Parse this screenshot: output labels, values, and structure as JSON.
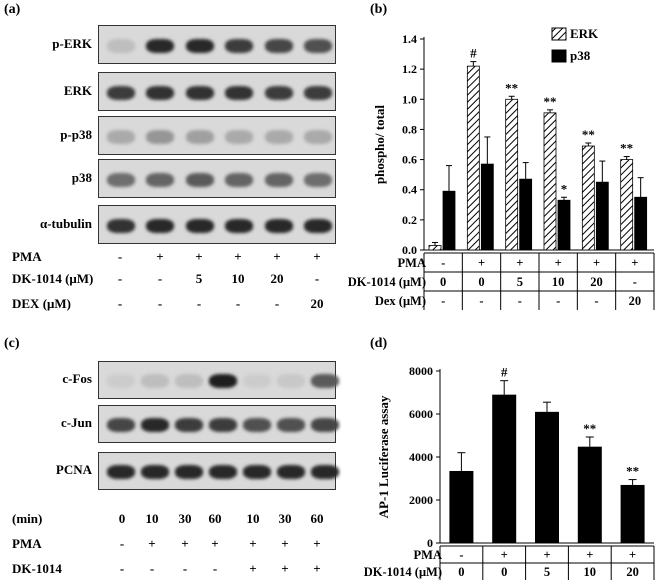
{
  "panels": {
    "a": {
      "label": "(a)",
      "blots": [
        "p-ERK",
        "ERK",
        "p-p38",
        "p38",
        "α-tubulin"
      ],
      "conditions": [
        {
          "label": "PMA",
          "values": [
            "-",
            "+",
            "+",
            "+",
            "+",
            "+"
          ]
        },
        {
          "label": "DK-1014 (μM)",
          "values": [
            "-",
            "-",
            "5",
            "10",
            "20",
            "-"
          ]
        },
        {
          "label": "DEX (μM)",
          "values": [
            "-",
            "-",
            "-",
            "-",
            "-",
            "20"
          ]
        }
      ]
    },
    "b": {
      "label": "(b)"
    },
    "c": {
      "label": "(c)",
      "blots": [
        "c-Fos",
        "c-Jun",
        "PCNA"
      ],
      "conditions": [
        {
          "label": "(min)",
          "values": [
            "0",
            "10",
            "30",
            "60",
            "10",
            "30",
            "60"
          ]
        },
        {
          "label": "PMA",
          "values": [
            "-",
            "+",
            "+",
            "+",
            "+",
            "+",
            "+"
          ]
        },
        {
          "label": "DK-1014",
          "values": [
            "-",
            "-",
            "-",
            "-",
            "+",
            "+",
            "+"
          ]
        }
      ]
    },
    "d": {
      "label": "(d)"
    }
  },
  "band_intensity": {
    "p-ERK": [
      0.15,
      0.9,
      0.9,
      0.8,
      0.75,
      0.7
    ],
    "ERK": [
      0.8,
      0.85,
      0.85,
      0.85,
      0.8,
      0.8
    ],
    "p-p38": [
      0.25,
      0.35,
      0.3,
      0.25,
      0.25,
      0.25
    ],
    "p38": [
      0.55,
      0.6,
      0.65,
      0.6,
      0.6,
      0.55
    ],
    "α-tubulin": [
      0.85,
      0.9,
      0.9,
      0.9,
      0.9,
      0.9
    ],
    "c-Fos": [
      0.08,
      0.15,
      0.15,
      0.95,
      0.08,
      0.1,
      0.65
    ],
    "c-Jun": [
      0.75,
      0.9,
      0.8,
      0.8,
      0.7,
      0.7,
      0.75
    ],
    "PCNA": [
      0.9,
      0.9,
      0.9,
      0.9,
      0.9,
      0.9,
      0.9
    ]
  },
  "chart_data": [
    {
      "type": "bar",
      "ylabel": "phospho/ total",
      "ylim": [
        0,
        1.4
      ],
      "yticks": [
        "0.0",
        "0.2",
        "0.4",
        "0.6",
        "0.8",
        "1.0",
        "1.2",
        "1.4"
      ],
      "legend_position": "top-right",
      "series": [
        {
          "name": "ERK",
          "values": [
            0.03,
            1.22,
            1.0,
            0.91,
            0.69,
            0.6
          ],
          "errors": [
            0.02,
            0.03,
            0.02,
            0.02,
            0.02,
            0.02
          ],
          "marks": [
            "",
            "#",
            "**",
            "**",
            "**",
            "**"
          ],
          "pattern": "hatched"
        },
        {
          "name": "p38",
          "values": [
            0.39,
            0.57,
            0.47,
            0.33,
            0.45,
            0.35
          ],
          "errors": [
            0.17,
            0.18,
            0.11,
            0.02,
            0.14,
            0.13
          ],
          "marks": [
            "",
            "",
            "",
            "*",
            "",
            ""
          ],
          "pattern": "solid"
        }
      ],
      "table": [
        {
          "label": "PMA",
          "values": [
            "-",
            "+",
            "+",
            "+",
            "+",
            "+"
          ]
        },
        {
          "label": "DK-1014 (μM)",
          "values": [
            "0",
            "0",
            "5",
            "10",
            "20",
            "-"
          ]
        },
        {
          "label": "Dex (μM)",
          "values": [
            "-",
            "-",
            "-",
            "-",
            "-",
            "20"
          ]
        }
      ]
    },
    {
      "type": "bar",
      "ylabel": "AP-1 Luciferase assay",
      "ylim": [
        0,
        8000
      ],
      "yticks": [
        "0",
        "2000",
        "4000",
        "6000",
        "8000"
      ],
      "series": [
        {
          "values": [
            3350,
            6900,
            6100,
            4480,
            2700
          ],
          "errors": [
            850,
            650,
            450,
            450,
            250
          ],
          "marks": [
            "",
            "#",
            "",
            "**",
            "**"
          ]
        }
      ],
      "table": [
        {
          "label": "PMA",
          "values": [
            "-",
            "+",
            "+",
            "+",
            "+"
          ]
        },
        {
          "label": "DK-1014 (μM)",
          "values": [
            "0",
            "0",
            "5",
            "10",
            "20"
          ]
        }
      ]
    }
  ]
}
